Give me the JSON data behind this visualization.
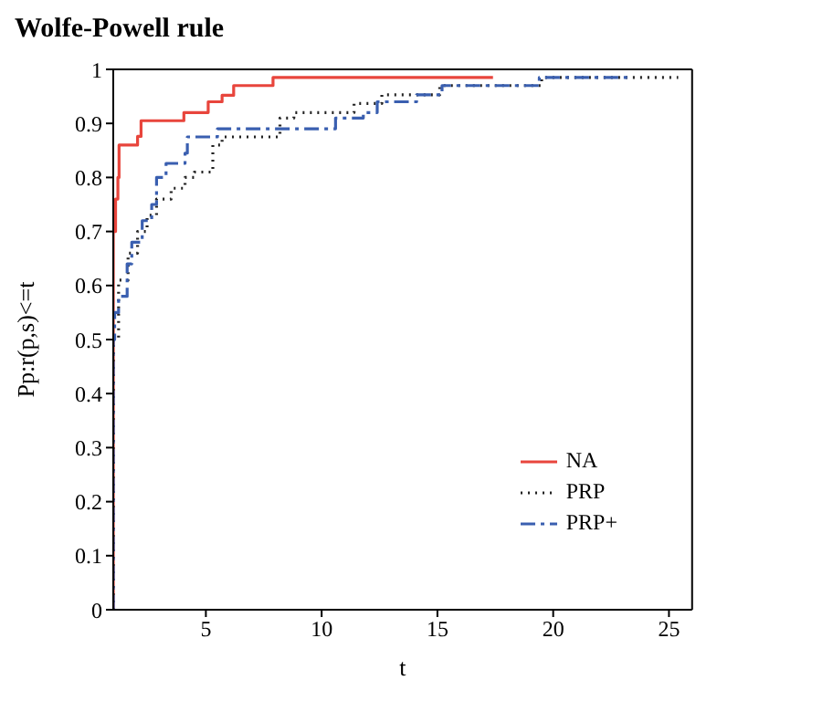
{
  "chart_data": {
    "type": "step",
    "title": "Wolfe-Powell rule",
    "xlabel": "t",
    "ylabel": "Pp:r(p,s)<=t",
    "xlim": [
      1,
      26
    ],
    "xticks": [
      5,
      10,
      15,
      20,
      25
    ],
    "ylim": [
      0,
      1
    ],
    "yticks": [
      0,
      0.1,
      0.2,
      0.3,
      0.4,
      0.5,
      0.6,
      0.7,
      0.8,
      0.9,
      1
    ],
    "grid": false,
    "legend": "bottom right",
    "marker": "none",
    "series": [
      {
        "name": "NA",
        "color": "#e8453c",
        "line_style": "solid",
        "x": [
          1,
          1,
          1.1,
          1.2,
          1.25,
          2.05,
          2.2,
          4.05,
          5.1,
          5.7,
          6.2,
          7.9,
          17.4
        ],
        "values": [
          0,
          0.7,
          0.76,
          0.8,
          0.86,
          0.876,
          0.905,
          0.92,
          0.94,
          0.952,
          0.97,
          0.985,
          0.985
        ]
      },
      {
        "name": "PRP",
        "color": "#222222",
        "line_style": "dotted",
        "x": [
          1,
          1,
          1.23,
          1.64,
          2.05,
          2.46,
          2.87,
          3.5,
          4.1,
          4.5,
          5.3,
          5.7,
          6.9,
          8.2,
          8.8,
          11.4,
          12.6,
          15.1,
          19.5,
          25.4
        ],
        "values": [
          0,
          0.5,
          0.61,
          0.66,
          0.7,
          0.73,
          0.76,
          0.78,
          0.8,
          0.81,
          0.86,
          0.875,
          0.875,
          0.91,
          0.92,
          0.937,
          0.953,
          0.97,
          0.985,
          0.985
        ]
      },
      {
        "name": "PRP+",
        "color": "#3a5fb0",
        "line_style": "dashed",
        "x": [
          1,
          1,
          1.06,
          1.23,
          1.6,
          1.8,
          2.25,
          2.66,
          2.87,
          3.28,
          4.1,
          4.2,
          5.5,
          10.6,
          11.8,
          12.4,
          14.1,
          15.2,
          19.4,
          23.2
        ],
        "values": [
          0,
          0.5,
          0.55,
          0.58,
          0.64,
          0.68,
          0.72,
          0.75,
          0.8,
          0.826,
          0.845,
          0.875,
          0.89,
          0.91,
          0.92,
          0.94,
          0.953,
          0.97,
          0.985,
          0.985
        ]
      }
    ]
  }
}
